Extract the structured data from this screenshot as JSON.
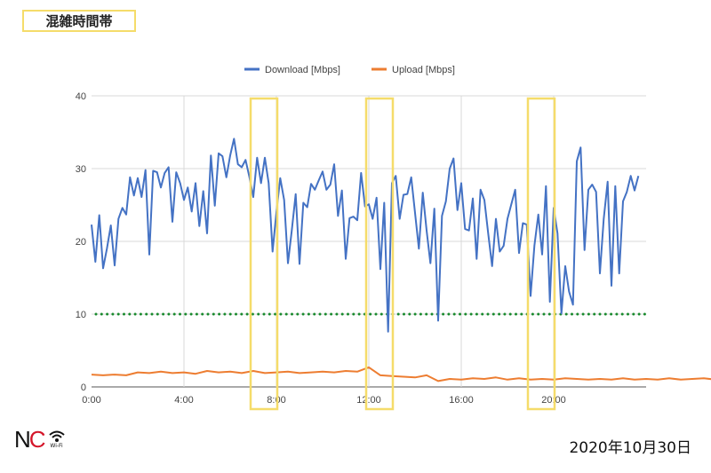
{
  "header": {
    "title": "混雑時間帯"
  },
  "footer": {
    "logo_text": "NC Wi-Fi",
    "logo_n": "N",
    "logo_c": "C",
    "logo_sub": "Wi-Fi",
    "date": "2020年10月30日"
  },
  "colors": {
    "download": "#4472c4",
    "upload": "#ed7d31",
    "threshold": "#1a8a2e",
    "highlight": "#f5dc6a",
    "grid": "#d9d9d9"
  },
  "chart_data": {
    "type": "line",
    "title": "",
    "xlabel": "",
    "ylabel": "",
    "ylim": [
      0,
      40
    ],
    "yticks": [
      0,
      10,
      20,
      30,
      40
    ],
    "xlim_hours": [
      0,
      24
    ],
    "xticks": [
      {
        "h": 0,
        "label": "0:00"
      },
      {
        "h": 4,
        "label": "4:00"
      },
      {
        "h": 8,
        "label": "8:00"
      },
      {
        "h": 12,
        "label": "12:00"
      },
      {
        "h": 16,
        "label": "16:00"
      },
      {
        "h": 20,
        "label": "20:00"
      }
    ],
    "grid": true,
    "legend_position": "top-center",
    "series": [
      {
        "name": "Download [Mbps]",
        "step_minutes": 10,
        "values": [
          22.3,
          17.2,
          23.6,
          16.3,
          19,
          22.2,
          16.7,
          23.1,
          24.6,
          23.7,
          28.8,
          26.3,
          28.7,
          26.1,
          29.8,
          18.2,
          29.7,
          29.5,
          27.4,
          29.4,
          30.2,
          22.7,
          29.5,
          28,
          25.7,
          27.4,
          24.1,
          28,
          22.1,
          26.9,
          21.1,
          31.8,
          24.9,
          32.1,
          31.7,
          28.8,
          31.8,
          34.1,
          30.6,
          30.2,
          31.2,
          28.8,
          26.1,
          31.5,
          28,
          31.5,
          28,
          18.6,
          24,
          28.7,
          25.7,
          17,
          21.5,
          26.5,
          16.9,
          25.3,
          24.7,
          27.9,
          27.1,
          28.4,
          29.6,
          27.1,
          27.8,
          30.6,
          23.5,
          27,
          17.6,
          23.2,
          23.4,
          22.9,
          29.4,
          24.8,
          25.1,
          23.1,
          26,
          16.2,
          25.3,
          7.6,
          28,
          29,
          23.1,
          26.4,
          26.5,
          28.8,
          23.9,
          19,
          26.7,
          21.5,
          17,
          24.5,
          9.1,
          23.5,
          25.5,
          30,
          31.4,
          24.3,
          28,
          21.7,
          21.5,
          25.9,
          17.6,
          27.1,
          25.7,
          21.1,
          16.6,
          23.1,
          18.6,
          19.4,
          23.1,
          25.1,
          27.1,
          18.4,
          22.5,
          22.3,
          12.5,
          19.4,
          23.7,
          18.2,
          27.6,
          11.7,
          24.6,
          21.1,
          10.1,
          16.6,
          13.1,
          11.3,
          31,
          32.9,
          18.8,
          27.1,
          27.8,
          26.8,
          15.6,
          23.1,
          28.2,
          13.9,
          27.6,
          15.6,
          25.5,
          26.8,
          29,
          27,
          29
        ]
      },
      {
        "name": "Upload [Mbps]",
        "step_minutes": 30,
        "values": [
          1.7,
          1.6,
          1.7,
          1.6,
          2.0,
          1.9,
          2.1,
          1.9,
          2.0,
          1.8,
          2.2,
          2.0,
          2.1,
          1.9,
          2.2,
          1.9,
          2.0,
          2.1,
          1.9,
          2.0,
          2.1,
          2.0,
          2.2,
          2.1,
          2.7,
          1.6,
          1.5,
          1.4,
          1.3,
          1.6,
          0.8,
          1.1,
          1.0,
          1.2,
          1.1,
          1.3,
          1.0,
          1.2,
          1.0,
          1.1,
          1.0,
          1.2,
          1.1,
          1.0,
          1.1,
          1.0,
          1.2,
          1.0,
          1.1,
          1.0,
          1.2,
          1.0,
          1.1,
          1.2,
          1.0,
          1.1,
          1.4,
          1.1,
          1.2,
          1.1,
          1.2,
          1.0,
          1.1,
          1.2,
          1.3,
          1.0,
          1.1,
          1.2,
          1.1,
          1.0,
          1.1,
          1.2,
          1.1,
          1.0,
          1.2,
          1.3,
          1.2,
          1.1,
          1.2,
          1.0,
          1.1,
          1.2,
          1.3,
          1.2,
          1.1,
          1.2,
          1.3,
          1.4,
          1.3,
          1.2,
          1.3,
          1.5,
          1.4,
          1.3,
          1.4,
          1.5,
          1.4,
          1.5,
          1.4,
          1.5
        ]
      }
    ],
    "threshold_line": {
      "value": 10,
      "style": "dotted"
    },
    "highlight_ranges_hours": [
      [
        7,
        8
      ],
      [
        12,
        13
      ],
      [
        19,
        20
      ]
    ]
  }
}
